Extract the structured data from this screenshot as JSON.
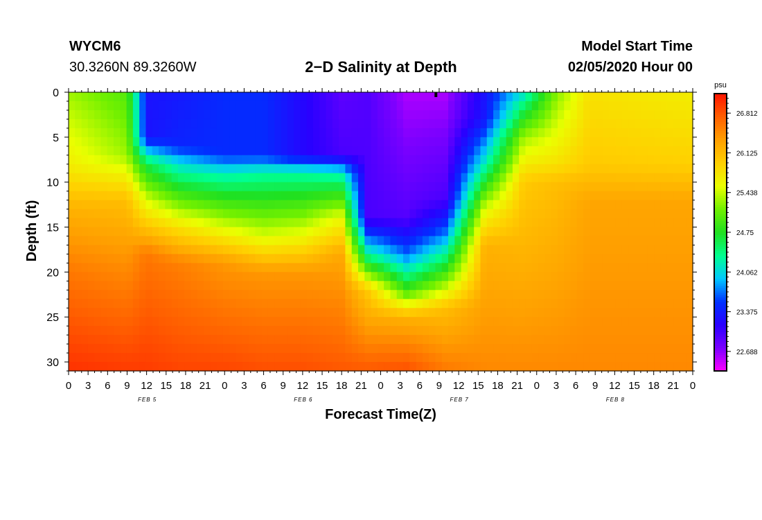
{
  "header": {
    "station_id": "WYCM6",
    "coordinates": "30.3260N 89.3260W",
    "title": "2−D Salinity at Depth",
    "model_start_label": "Model Start Time",
    "model_start_value": "02/05/2020 Hour 00"
  },
  "chart_data": {
    "type": "heatmap",
    "title": "2−D Salinity at Depth",
    "xlabel": "Forecast Time(Z)",
    "ylabel": "Depth (ft)",
    "x_hours_range": [
      0,
      96
    ],
    "ylim": [
      0,
      31
    ],
    "y_ticks": [
      "0",
      "5",
      "10",
      "15",
      "20",
      "25",
      "30"
    ],
    "x_tick_labels": [
      "0",
      "3",
      "6",
      "9",
      "12",
      "15",
      "18",
      "21",
      "0",
      "3",
      "6",
      "9",
      "12",
      "15",
      "18",
      "21",
      "0",
      "3",
      "6",
      "9",
      "12",
      "15",
      "18",
      "21",
      "0",
      "3",
      "6",
      "9",
      "12",
      "15",
      "18",
      "21",
      "0"
    ],
    "date_labels": [
      {
        "hour": 12,
        "label": "FEB 5"
      },
      {
        "hour": 36,
        "label": "FEB 6"
      },
      {
        "hour": 60,
        "label": "FEB 7"
      },
      {
        "hour": 84,
        "label": "FEB 8"
      }
    ],
    "colorbar": {
      "unit": "psu",
      "min": 22.35,
      "max": 27.15,
      "tick_values": [
        22.688,
        23.375,
        24.062,
        24.75,
        25.438,
        26.125,
        26.812
      ],
      "tick_labels": [
        "22.688",
        "23.375",
        "24.062",
        "24.75",
        "25.438",
        "26.125",
        "26.812"
      ],
      "colors": [
        "#ff00ff",
        "#7b00ff",
        "#2a00ff",
        "#0030ff",
        "#00c8ff",
        "#00ff90",
        "#20e020",
        "#70f000",
        "#eaff00",
        "#ffd000",
        "#ffa000",
        "#ff6000",
        "#ff1500"
      ]
    },
    "profiles": [
      {
        "hour": 0,
        "depths": [
          0,
          8,
          13,
          20,
          31
        ],
        "values": [
          25.3,
          25.7,
          26.2,
          26.6,
          27.0
        ]
      },
      {
        "hour": 9,
        "depths": [
          0,
          7,
          12,
          20,
          31
        ],
        "values": [
          25.0,
          25.3,
          26.1,
          26.5,
          26.95
        ]
      },
      {
        "hour": 12,
        "depths": [
          0,
          5,
          8,
          12,
          18,
          31
        ],
        "values": [
          23.3,
          23.3,
          24.6,
          25.5,
          26.6,
          26.95
        ]
      },
      {
        "hour": 17,
        "depths": [
          0,
          6,
          8,
          15,
          19,
          31
        ],
        "values": [
          23.35,
          23.45,
          24.1,
          25.8,
          26.55,
          26.9
        ]
      },
      {
        "hour": 24,
        "depths": [
          0,
          7,
          9,
          15,
          19,
          31
        ],
        "values": [
          23.5,
          23.5,
          24.2,
          25.5,
          26.4,
          26.9
        ]
      },
      {
        "hour": 30,
        "depths": [
          0,
          7,
          9,
          16,
          20,
          31
        ],
        "values": [
          23.5,
          23.5,
          24.3,
          25.5,
          26.4,
          26.85
        ]
      },
      {
        "hour": 36,
        "depths": [
          0,
          7,
          9,
          16,
          20,
          31
        ],
        "values": [
          23.2,
          23.2,
          24.3,
          25.6,
          26.4,
          26.85
        ]
      },
      {
        "hour": 42,
        "depths": [
          0,
          7,
          9,
          14,
          18,
          31
        ],
        "values": [
          22.9,
          23.0,
          24.2,
          25.6,
          26.3,
          26.8
        ]
      },
      {
        "hour": 46,
        "depths": [
          0,
          14,
          18,
          22,
          31
        ],
        "values": [
          22.95,
          23.0,
          24.3,
          26.0,
          26.8
        ]
      },
      {
        "hour": 52,
        "depths": [
          0,
          14,
          18,
          22,
          25,
          31
        ],
        "values": [
          22.6,
          22.95,
          23.7,
          24.9,
          26.2,
          26.85
        ]
      },
      {
        "hour": 58,
        "depths": [
          0,
          12,
          16,
          20,
          24,
          31
        ],
        "values": [
          22.6,
          23.0,
          23.8,
          24.9,
          26.1,
          26.6
        ]
      },
      {
        "hour": 64,
        "depths": [
          0,
          3,
          8,
          13,
          17,
          31
        ],
        "values": [
          23.3,
          23.35,
          24.2,
          25.5,
          26.2,
          26.5
        ]
      },
      {
        "hour": 70,
        "depths": [
          0,
          5,
          10,
          31
        ],
        "values": [
          24.1,
          25.3,
          26.0,
          26.5
        ]
      },
      {
        "hour": 75,
        "depths": [
          0,
          8,
          10,
          31
        ],
        "values": [
          25.2,
          25.8,
          26.1,
          26.5
        ]
      },
      {
        "hour": 80,
        "depths": [
          0,
          8,
          12,
          31
        ],
        "values": [
          25.8,
          26.0,
          26.3,
          26.5
        ]
      },
      {
        "hour": 96,
        "depths": [
          0,
          8,
          12,
          31
        ],
        "values": [
          25.7,
          25.95,
          26.3,
          26.5
        ]
      }
    ]
  }
}
